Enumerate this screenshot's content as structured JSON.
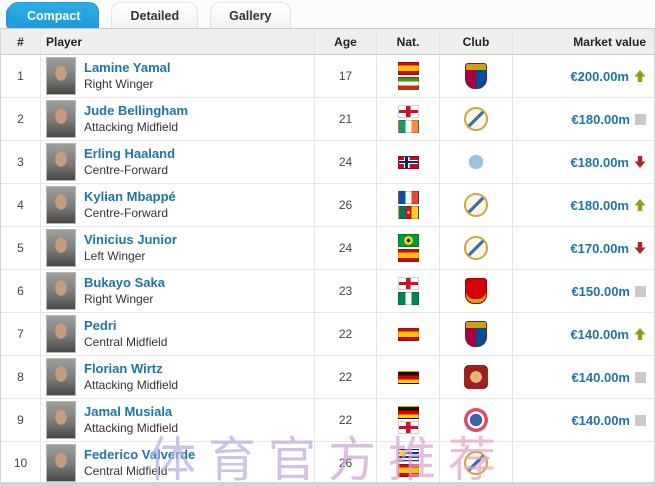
{
  "tabs": [
    {
      "label": "Compact",
      "active": true
    },
    {
      "label": "Detailed",
      "active": false
    },
    {
      "label": "Gallery",
      "active": false
    }
  ],
  "table": {
    "headers": {
      "rank": "#",
      "player": "Player",
      "age": "Age",
      "nat": "Nat.",
      "club": "Club",
      "market_value": "Market value"
    },
    "rows": [
      {
        "rank": "1",
        "name": "Lamine Yamal",
        "position": "Right Winger",
        "age": "17",
        "nationalities": [
          "spain",
          "equatorial-guinea"
        ],
        "club": "fc-barcelona",
        "market_value": "€200.00m",
        "trend": "up"
      },
      {
        "rank": "2",
        "name": "Jude Bellingham",
        "position": "Attacking Midfield",
        "age": "21",
        "nationalities": [
          "england",
          "ireland"
        ],
        "club": "real-madrid",
        "market_value": "€180.00m",
        "trend": "flat"
      },
      {
        "rank": "3",
        "name": "Erling Haaland",
        "position": "Centre-Forward",
        "age": "24",
        "nationalities": [
          "norway"
        ],
        "club": "manchester-city",
        "market_value": "€180.00m",
        "trend": "down"
      },
      {
        "rank": "4",
        "name": "Kylian Mbappé",
        "position": "Centre-Forward",
        "age": "26",
        "nationalities": [
          "france",
          "cameroon"
        ],
        "club": "real-madrid",
        "market_value": "€180.00m",
        "trend": "up"
      },
      {
        "rank": "5",
        "name": "Vinicius Junior",
        "position": "Left Winger",
        "age": "24",
        "nationalities": [
          "brazil",
          "spain"
        ],
        "club": "real-madrid",
        "market_value": "€170.00m",
        "trend": "down"
      },
      {
        "rank": "6",
        "name": "Bukayo Saka",
        "position": "Right Winger",
        "age": "23",
        "nationalities": [
          "england",
          "nigeria"
        ],
        "club": "arsenal",
        "market_value": "€150.00m",
        "trend": "flat"
      },
      {
        "rank": "7",
        "name": "Pedri",
        "position": "Central Midfield",
        "age": "22",
        "nationalities": [
          "spain"
        ],
        "club": "fc-barcelona",
        "market_value": "€140.00m",
        "trend": "up"
      },
      {
        "rank": "8",
        "name": "Florian Wirtz",
        "position": "Attacking Midfield",
        "age": "22",
        "nationalities": [
          "germany"
        ],
        "club": "bayer-leverkusen",
        "market_value": "€140.00m",
        "trend": "flat"
      },
      {
        "rank": "9",
        "name": "Jamal Musiala",
        "position": "Attacking Midfield",
        "age": "22",
        "nationalities": [
          "germany",
          "england"
        ],
        "club": "bayern-munich",
        "market_value": "€140.00m",
        "trend": "flat"
      },
      {
        "rank": "10",
        "name": "Federico Valverde",
        "position": "Central Midfield",
        "age": "26",
        "nationalities": [
          "uruguay",
          "spain"
        ],
        "club": "real-madrid",
        "market_value": "",
        "trend": ""
      }
    ]
  },
  "colors": {
    "accent_blue": "#25a2dc",
    "link_blue": "#1d75a3",
    "trend_up": "#86a310",
    "trend_down": "#b5232a",
    "trend_flat": "#c9c9c7"
  },
  "watermark": {
    "text": "体育官方推荐"
  }
}
